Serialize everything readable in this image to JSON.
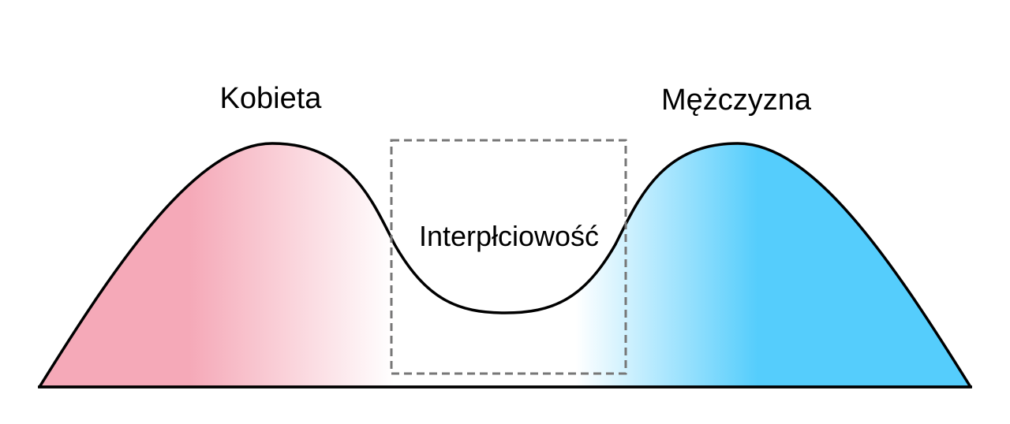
{
  "labels": {
    "female": "Kobieta",
    "male": "Mężczyzna",
    "intersex": "Interpłciowość"
  },
  "colors": {
    "female": "#f5a9b8",
    "male": "#55cdfc",
    "middle": "#ffffff",
    "outline": "#000000",
    "box": "#777777"
  }
}
